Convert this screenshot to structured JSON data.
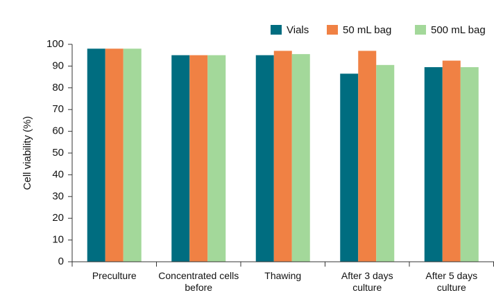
{
  "chart_data": {
    "type": "bar",
    "y_label": "Cell viability (%)",
    "categories": [
      "Preculture",
      "Concentrated cells before",
      "Thawing",
      "After 3 days culture",
      "After 5 days culture"
    ],
    "series": [
      {
        "name": "Vials",
        "color": "#006d80",
        "values": [
          98,
          95,
          95,
          86.5,
          89.5
        ]
      },
      {
        "name": "50 mL bag",
        "color": "#f08144",
        "values": [
          98,
          95,
          97,
          97,
          92.5
        ]
      },
      {
        "name": "500 mL bag",
        "color": "#a3d89a",
        "values": [
          98,
          95,
          95.5,
          90.5,
          89.5
        ]
      }
    ],
    "ylim": [
      0,
      100
    ],
    "yticks": [
      0,
      10,
      20,
      30,
      40,
      50,
      60,
      70,
      80,
      90,
      100
    ],
    "legend": "top-right"
  }
}
